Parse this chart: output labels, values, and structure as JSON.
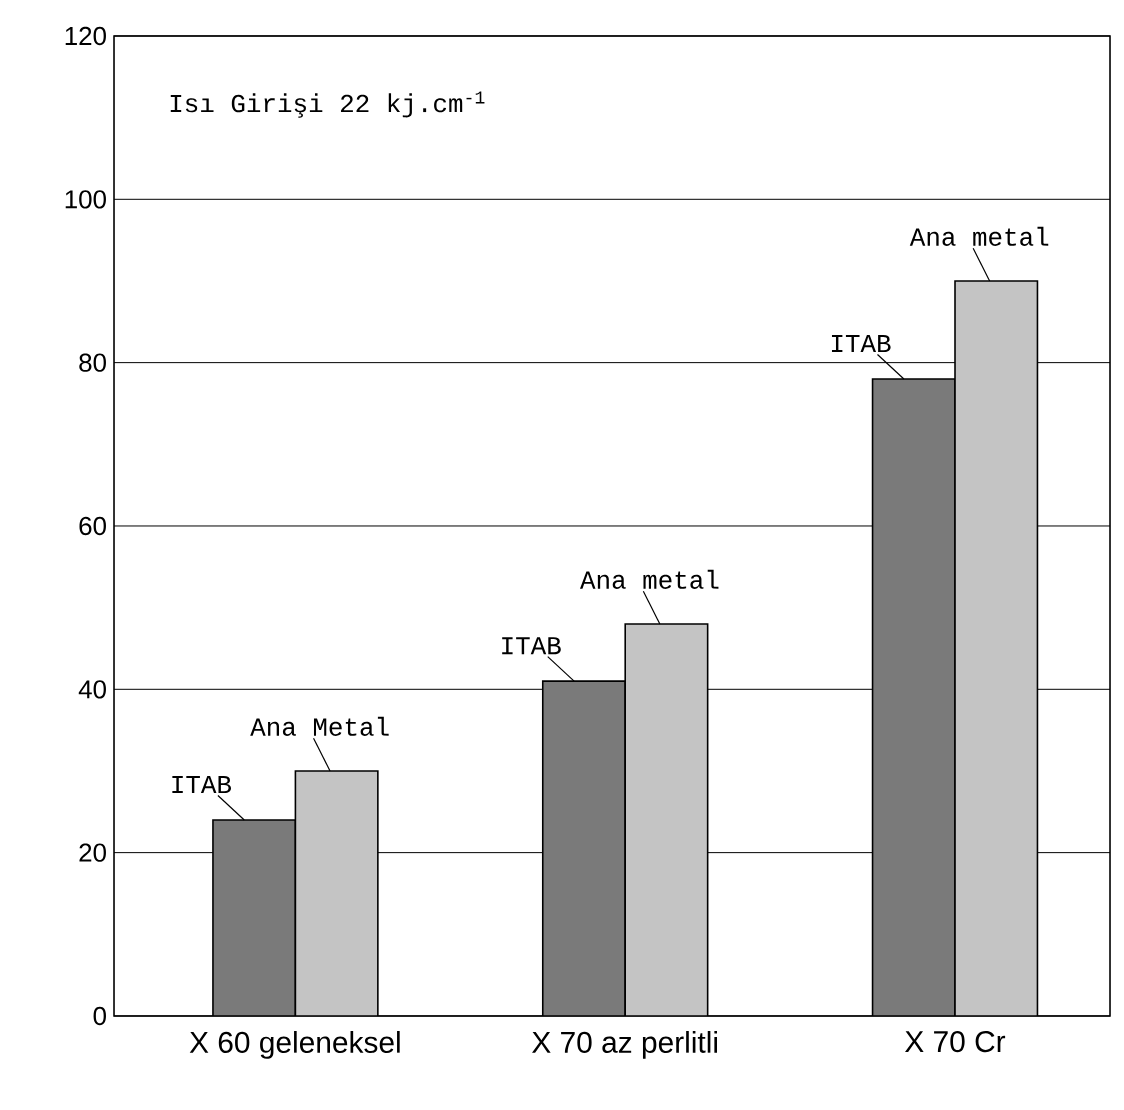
{
  "chart_data": {
    "type": "bar",
    "categories": [
      "X 60 geleneksel",
      "X 70 az perlitli",
      "X 70 Cr"
    ],
    "series": [
      {
        "color": "#7a7a7a",
        "values": [
          24,
          41,
          78
        ]
      },
      {
        "color": "#c4c4c4",
        "values": [
          30,
          48,
          90
        ]
      }
    ],
    "ylim": [
      0,
      120
    ],
    "yticks": [
      0,
      20,
      40,
      60,
      80,
      100,
      120
    ],
    "grid": "y",
    "annotations": [
      "Isı Girişi 22 kj.cm$^{-1}$",
      {
        "text": "ITAB",
        "x": "X 60 geleneksel",
        "y": 24
      },
      {
        "text": "Ana Metal",
        "x": "X 60 geleneksel",
        "y": 30
      },
      {
        "text": "ITAB",
        "x": "X 70 az perlitli",
        "y": 41
      },
      {
        "text": "Ana metal",
        "x": "X 70 az perlitli",
        "y": 48
      },
      {
        "text": "ITAB",
        "x": "X 70 Cr",
        "y": 78
      },
      {
        "text": "Ana metal",
        "x": "X 70 Cr",
        "y": 90
      }
    ]
  }
}
